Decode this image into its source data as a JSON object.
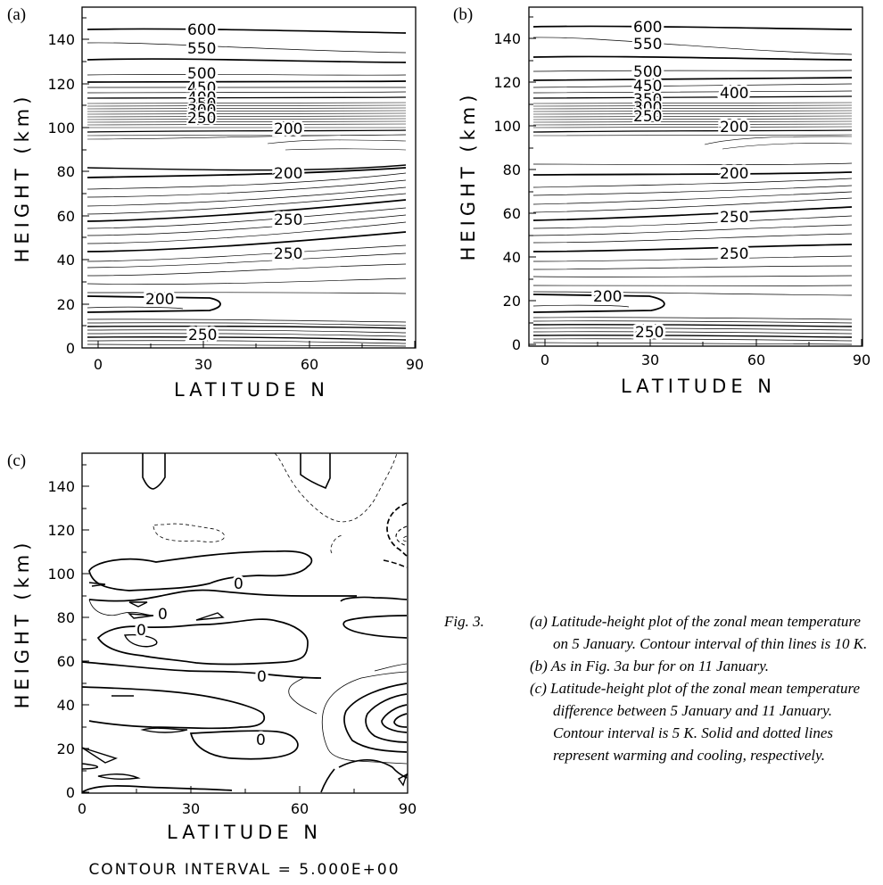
{
  "panels": [
    {
      "letter": "(a)",
      "xlabel": "LATITUDE  N",
      "ylabel": "HEIGHT (km)",
      "xticks": [
        "0",
        "30",
        "60",
        "90"
      ],
      "yticks": [
        "0",
        "20",
        "40",
        "60",
        "80",
        "100",
        "120",
        "140"
      ],
      "labels": [
        "600",
        "550",
        "500",
        "450",
        "400",
        "350",
        "300",
        "250",
        "200",
        "200",
        "250",
        "250",
        "200",
        "250"
      ]
    },
    {
      "letter": "(b)",
      "xlabel": "LATITUDE  N",
      "ylabel": "HEIGHT (km)",
      "xticks": [
        "0",
        "30",
        "60",
        "90"
      ],
      "yticks": [
        "0",
        "20",
        "40",
        "60",
        "80",
        "100",
        "120",
        "140"
      ],
      "labels": [
        "600",
        "550",
        "500",
        "450",
        "400",
        "350",
        "300",
        "250",
        "200",
        "200",
        "250",
        "250",
        "200",
        "250"
      ]
    },
    {
      "letter": "(c)",
      "xlabel": "LATITUDE  N",
      "ylabel": "HEIGHT (km)",
      "xticks": [
        "0",
        "30",
        "60",
        "90"
      ],
      "yticks": [
        "0",
        "20",
        "40",
        "60",
        "80",
        "100",
        "120",
        "140"
      ],
      "labels": [
        "0",
        "0",
        "0",
        "0",
        "0"
      ],
      "contour_interval": "CONTOUR INTERVAL = 5.000E+00"
    }
  ],
  "caption": {
    "fig": "Fig. 3.",
    "items": [
      "(a) Latitude-height plot of the zonal mean temperature on 5 January. Contour interval of thin lines is 10 K.",
      "(b) As in Fig. 3a bur for on 11 January.",
      "(c) Latitude-height plot of the zonal mean temperature difference between 5 January and 11 January. Contour interval is 5 K. Solid and dotted lines represent warming and cooling, respectively."
    ]
  },
  "chart_data": [
    {
      "type": "contour",
      "panel": "a",
      "xlabel": "LATITUDE N",
      "ylabel": "HEIGHT (km)",
      "xlim": [
        -3,
        90
      ],
      "ylim": [
        0,
        155
      ],
      "xticks": [
        0,
        30,
        60,
        90
      ],
      "yticks": [
        0,
        20,
        40,
        60,
        80,
        100,
        120,
        140
      ],
      "labeled_contours": [
        {
          "value": 600,
          "x": 27,
          "y": 144
        },
        {
          "value": 550,
          "x": 27,
          "y": 137
        },
        {
          "value": 500,
          "x": 27,
          "y": 123
        },
        {
          "value": 450,
          "x": 27,
          "y": 117
        },
        {
          "value": 400,
          "x": 27,
          "y": 113
        },
        {
          "value": 350,
          "x": 27,
          "y": 110
        },
        {
          "value": 300,
          "x": 27,
          "y": 107
        },
        {
          "value": 250,
          "x": 27,
          "y": 104
        },
        {
          "value": 200,
          "x": 55,
          "y": 98
        },
        {
          "value": 200,
          "x": 55,
          "y": 78
        },
        {
          "value": 250,
          "x": 55,
          "y": 58
        },
        {
          "value": 250,
          "x": 55,
          "y": 42
        },
        {
          "value": 200,
          "x": 20,
          "y": 21
        },
        {
          "value": 250,
          "x": 28,
          "y": 6
        }
      ],
      "thin_line_interval_K": 10
    },
    {
      "type": "contour",
      "panel": "b",
      "xlabel": "LATITUDE N",
      "ylabel": "HEIGHT (km)",
      "xlim": [
        -3,
        90
      ],
      "ylim": [
        0,
        155
      ],
      "xticks": [
        0,
        30,
        60,
        90
      ],
      "yticks": [
        0,
        20,
        40,
        60,
        80,
        100,
        120,
        140
      ],
      "labeled_contours": [
        {
          "value": 600,
          "x": 27,
          "y": 144
        },
        {
          "value": 550,
          "x": 27,
          "y": 137
        },
        {
          "value": 500,
          "x": 27,
          "y": 123
        },
        {
          "value": 450,
          "x": 27,
          "y": 117
        },
        {
          "value": 400,
          "x": 55,
          "y": 116
        },
        {
          "value": 350,
          "x": 27,
          "y": 112
        },
        {
          "value": 300,
          "x": 27,
          "y": 109
        },
        {
          "value": 250,
          "x": 27,
          "y": 106
        },
        {
          "value": 200,
          "x": 55,
          "y": 98
        },
        {
          "value": 200,
          "x": 55,
          "y": 79
        },
        {
          "value": 250,
          "x": 55,
          "y": 58
        },
        {
          "value": 250,
          "x": 55,
          "y": 42
        },
        {
          "value": 200,
          "x": 20,
          "y": 21
        },
        {
          "value": 250,
          "x": 28,
          "y": 6
        }
      ]
    },
    {
      "type": "contour",
      "panel": "c",
      "xlabel": "LATITUDE N",
      "ylabel": "HEIGHT (km)",
      "xlim": [
        0,
        90
      ],
      "ylim": [
        0,
        155
      ],
      "xticks": [
        0,
        30,
        60,
        90
      ],
      "yticks": [
        0,
        20,
        40,
        60,
        80,
        100,
        120,
        140
      ],
      "contour_interval": 5.0,
      "labeled_contours": [
        {
          "value": 0,
          "x": 46,
          "y": 95
        },
        {
          "value": 0,
          "x": 24,
          "y": 81
        },
        {
          "value": 0,
          "x": 17,
          "y": 72
        },
        {
          "value": 0,
          "x": 50,
          "y": 46
        },
        {
          "value": 0,
          "x": 50,
          "y": 14
        }
      ]
    }
  ]
}
